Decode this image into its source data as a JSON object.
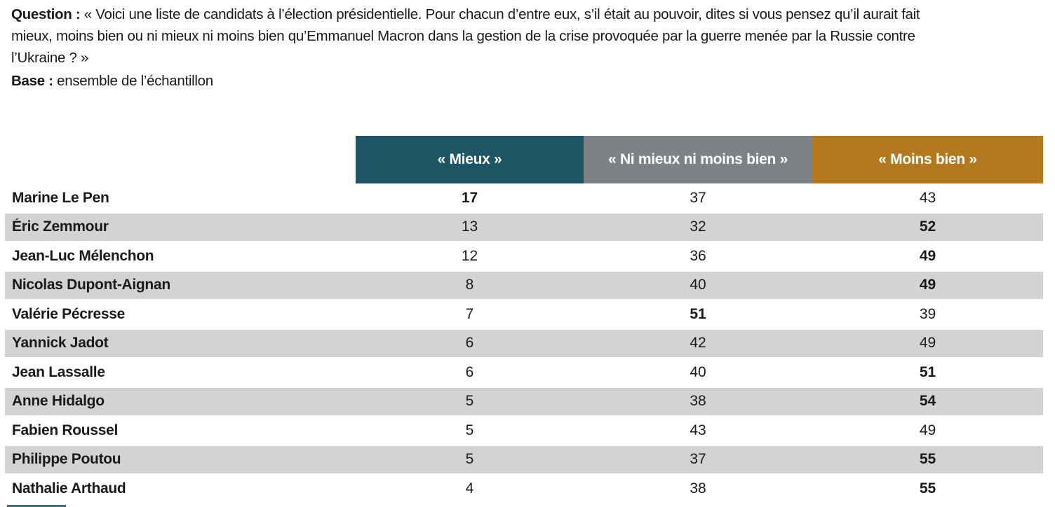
{
  "intro": {
    "question_label": "Question :",
    "question_text": " « Voici une liste de candidats à l’élection présidentielle. Pour chacun d’entre eux, s’il était au pouvoir, dites si vous pensez qu’il aurait fait mieux, moins bien ou ni mieux ni moins bien qu’Emmanuel Macron dans la gestion de la crise provoquée par la guerre menée par la Russie contre l’Ukraine ? »",
    "base_label": "Base :",
    "base_text": " ensemble de l’échantillon"
  },
  "table": {
    "columns": [
      {
        "label": "« Mieux »",
        "color": "#1d5565"
      },
      {
        "label": "« Ni mieux ni moins bien »",
        "color": "#7d8384"
      },
      {
        "label": "« Moins bien »",
        "color": "#b2791f"
      }
    ],
    "row_stripe_color": "#d2d3d5",
    "text_color": "#1a1a1a",
    "rows": [
      {
        "name": "Marine Le Pen",
        "mieux": "17",
        "mieux_bold": true,
        "ni_mieux": "37",
        "ni_mieux_bold": false,
        "moins_bien": "43",
        "moins_bien_bold": false
      },
      {
        "name": "Éric Zemmour",
        "mieux": "13",
        "mieux_bold": false,
        "ni_mieux": "32",
        "ni_mieux_bold": false,
        "moins_bien": "52",
        "moins_bien_bold": true
      },
      {
        "name": "Jean-Luc Mélenchon",
        "mieux": "12",
        "mieux_bold": false,
        "ni_mieux": "36",
        "ni_mieux_bold": false,
        "moins_bien": "49",
        "moins_bien_bold": true
      },
      {
        "name": "Nicolas Dupont-Aignan",
        "mieux": "8",
        "mieux_bold": false,
        "ni_mieux": "40",
        "ni_mieux_bold": false,
        "moins_bien": "49",
        "moins_bien_bold": true
      },
      {
        "name": "Valérie Pécresse",
        "mieux": "7",
        "mieux_bold": false,
        "ni_mieux": "51",
        "ni_mieux_bold": true,
        "moins_bien": "39",
        "moins_bien_bold": false
      },
      {
        "name": "Yannick Jadot",
        "mieux": "6",
        "mieux_bold": false,
        "ni_mieux": "42",
        "ni_mieux_bold": false,
        "moins_bien": "49",
        "moins_bien_bold": false
      },
      {
        "name": "Jean Lassalle",
        "mieux": "6",
        "mieux_bold": false,
        "ni_mieux": "40",
        "ni_mieux_bold": false,
        "moins_bien": "51",
        "moins_bien_bold": true
      },
      {
        "name": "Anne Hidalgo",
        "mieux": "5",
        "mieux_bold": false,
        "ni_mieux": "38",
        "ni_mieux_bold": false,
        "moins_bien": "54",
        "moins_bien_bold": true
      },
      {
        "name": "Fabien Roussel",
        "mieux": "5",
        "mieux_bold": false,
        "ni_mieux": "43",
        "ni_mieux_bold": false,
        "moins_bien": "49",
        "moins_bien_bold": false
      },
      {
        "name": "Philippe Poutou",
        "mieux": "5",
        "mieux_bold": false,
        "ni_mieux": "37",
        "ni_mieux_bold": false,
        "moins_bien": "55",
        "moins_bien_bold": true
      },
      {
        "name": "Nathalie Arthaud",
        "mieux": "4",
        "mieux_bold": false,
        "ni_mieux": "38",
        "ni_mieux_bold": false,
        "moins_bien": "55",
        "moins_bien_bold": true
      }
    ]
  }
}
